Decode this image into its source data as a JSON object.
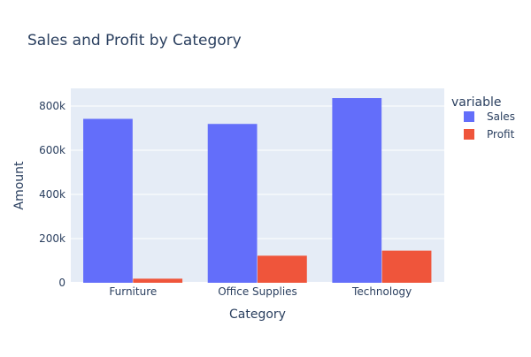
{
  "chart_data": {
    "type": "bar",
    "barmode": "group",
    "title": "Sales and Profit by Category",
    "xlabel": "Category",
    "ylabel": "Amount",
    "categories": [
      "Furniture",
      "Office Supplies",
      "Technology"
    ],
    "series": [
      {
        "name": "Sales",
        "color": "#636efa",
        "values": [
          742000,
          719000,
          836000
        ]
      },
      {
        "name": "Profit",
        "color": "#ef553b",
        "values": [
          18500,
          122500,
          145500
        ]
      }
    ],
    "ylim": [
      0,
      880000
    ],
    "yticks": [
      0,
      200000,
      400000,
      600000,
      800000
    ],
    "ytick_labels": [
      "0",
      "200k",
      "400k",
      "600k",
      "800k"
    ],
    "grid": true,
    "plot_background": "#e5ecf6",
    "legend": {
      "title": "variable",
      "placement": "right"
    }
  }
}
